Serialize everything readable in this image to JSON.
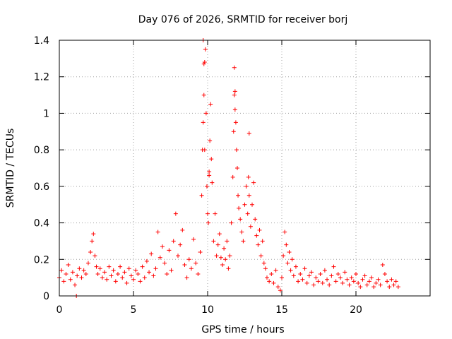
{
  "chart_data": {
    "type": "scatter",
    "title": "Day 076 of 2026, SRMTID for receiver borj",
    "xlabel": "GPS time / hours",
    "ylabel": "SRMTID / TECUs",
    "xlim": [
      0,
      25
    ],
    "ylim": [
      0,
      1.4
    ],
    "x_ticks": [
      0,
      5,
      10,
      15,
      20
    ],
    "y_ticks": [
      0,
      0.2,
      0.4,
      0.6,
      0.8,
      1.0,
      1.2,
      1.4
    ],
    "x_tick_labels": [
      "0",
      "5",
      "10",
      "15",
      "20"
    ],
    "y_tick_labels": [
      "0",
      "0.2",
      "0.4",
      "0.6",
      "0.8",
      "1",
      "1.2",
      "1.4"
    ],
    "grid": true,
    "marker": "+",
    "series": [
      {
        "name": "SRMTID",
        "color": "#ff0000",
        "x": [
          0.0,
          0.15,
          0.3,
          0.45,
          0.6,
          0.75,
          0.9,
          1.05,
          1.2,
          1.35,
          1.5,
          1.65,
          1.8,
          1.95,
          2.1,
          2.2,
          2.3,
          2.4,
          2.5,
          2.6,
          2.75,
          2.9,
          3.05,
          3.2,
          3.35,
          3.5,
          3.65,
          3.8,
          3.95,
          4.1,
          4.25,
          4.4,
          4.55,
          4.7,
          4.85,
          5.0,
          5.15,
          5.3,
          5.45,
          5.6,
          5.75,
          5.9,
          6.05,
          6.2,
          6.35,
          6.5,
          6.65,
          6.8,
          6.95,
          7.1,
          7.25,
          7.4,
          7.55,
          7.7,
          7.85,
          8.0,
          8.15,
          8.3,
          8.45,
          8.6,
          8.75,
          8.9,
          9.05,
          9.2,
          9.35,
          9.5,
          9.6,
          9.65,
          9.7,
          9.75,
          9.8,
          9.85,
          9.9,
          9.95,
          10.0,
          10.05,
          10.1,
          10.15,
          10.2,
          10.25,
          10.3,
          10.4,
          10.5,
          10.6,
          10.7,
          10.8,
          10.9,
          11.0,
          11.1,
          11.2,
          11.3,
          11.4,
          11.5,
          11.6,
          11.7,
          11.75,
          11.8,
          11.85,
          11.9,
          11.95,
          12.0,
          12.05,
          12.1,
          12.2,
          12.3,
          12.4,
          12.5,
          12.6,
          12.7,
          12.75,
          12.8,
          12.9,
          13.0,
          13.1,
          13.2,
          13.3,
          13.4,
          13.5,
          13.6,
          13.7,
          13.8,
          13.9,
          14.0,
          14.15,
          14.3,
          14.45,
          14.6,
          14.75,
          14.9,
          15.0,
          15.1,
          15.2,
          15.3,
          15.4,
          15.5,
          15.6,
          15.7,
          15.8,
          15.95,
          16.1,
          16.25,
          16.4,
          16.55,
          16.7,
          16.85,
          17.0,
          17.15,
          17.3,
          17.45,
          17.6,
          17.75,
          17.9,
          18.05,
          18.2,
          18.35,
          18.5,
          18.65,
          18.8,
          18.95,
          19.1,
          19.25,
          19.4,
          19.55,
          19.7,
          19.85,
          20.0,
          20.15,
          20.3,
          20.45,
          20.6,
          20.75,
          20.9,
          21.05,
          21.2,
          21.35,
          21.5,
          21.65,
          21.8,
          21.95,
          22.1,
          22.25,
          22.4,
          22.55,
          22.7,
          22.85,
          1.15,
          9.7,
          9.75,
          9.8,
          10.1,
          11.8,
          11.85,
          12.8
        ],
        "y": [
          0.1,
          0.14,
          0.08,
          0.12,
          0.17,
          0.09,
          0.13,
          0.06,
          0.11,
          0.15,
          0.1,
          0.14,
          0.12,
          0.18,
          0.24,
          0.3,
          0.34,
          0.22,
          0.16,
          0.12,
          0.15,
          0.1,
          0.13,
          0.09,
          0.16,
          0.11,
          0.14,
          0.08,
          0.12,
          0.16,
          0.1,
          0.13,
          0.07,
          0.15,
          0.11,
          0.09,
          0.14,
          0.12,
          0.08,
          0.16,
          0.1,
          0.19,
          0.13,
          0.23,
          0.11,
          0.15,
          0.35,
          0.21,
          0.27,
          0.18,
          0.12,
          0.25,
          0.14,
          0.3,
          0.45,
          0.22,
          0.28,
          0.36,
          0.17,
          0.1,
          0.2,
          0.15,
          0.31,
          0.18,
          0.12,
          0.24,
          0.55,
          0.8,
          0.95,
          1.1,
          1.28,
          1.35,
          1.0,
          0.6,
          0.45,
          0.4,
          0.66,
          0.85,
          1.05,
          0.75,
          0.62,
          0.3,
          0.45,
          0.22,
          0.28,
          0.34,
          0.21,
          0.17,
          0.26,
          0.2,
          0.3,
          0.15,
          0.22,
          0.4,
          0.65,
          0.9,
          1.1,
          1.02,
          0.95,
          0.8,
          0.7,
          0.55,
          0.48,
          0.42,
          0.35,
          0.3,
          0.5,
          0.6,
          0.45,
          0.65,
          0.55,
          0.38,
          0.5,
          0.62,
          0.42,
          0.33,
          0.28,
          0.36,
          0.22,
          0.3,
          0.18,
          0.15,
          0.1,
          0.08,
          0.12,
          0.07,
          0.14,
          0.05,
          0.03,
          0.1,
          0.22,
          0.35,
          0.28,
          0.18,
          0.24,
          0.14,
          0.2,
          0.11,
          0.16,
          0.08,
          0.12,
          0.09,
          0.15,
          0.07,
          0.11,
          0.13,
          0.06,
          0.1,
          0.08,
          0.12,
          0.07,
          0.14,
          0.09,
          0.06,
          0.11,
          0.16,
          0.08,
          0.12,
          0.1,
          0.07,
          0.13,
          0.09,
          0.06,
          0.1,
          0.08,
          0.12,
          0.07,
          0.05,
          0.09,
          0.11,
          0.06,
          0.08,
          0.1,
          0.05,
          0.07,
          0.09,
          0.06,
          0.17,
          0.12,
          0.08,
          0.05,
          0.09,
          0.06,
          0.08,
          0.05,
          0.0,
          1.4,
          1.27,
          0.8,
          0.68,
          1.25,
          1.12,
          0.89
        ]
      }
    ]
  }
}
